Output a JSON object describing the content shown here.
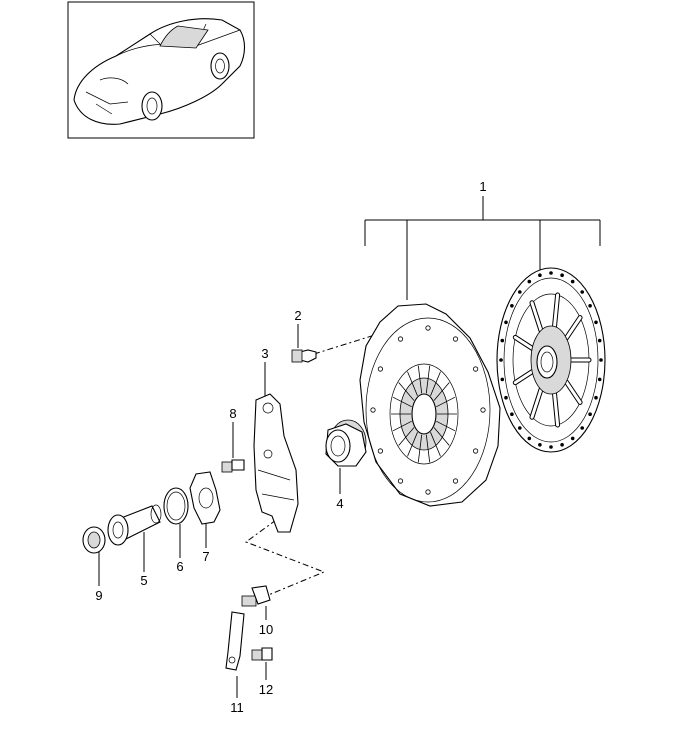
{
  "callouts": {
    "c1": "1",
    "c2": "2",
    "c3": "3",
    "c4": "4",
    "c5": "5",
    "c6": "6",
    "c7": "7",
    "c8": "8",
    "c9": "9",
    "c10": "10",
    "c11": "11",
    "c12": "12"
  },
  "icons": {
    "thumbnail": "car-thumbnail-icon"
  }
}
